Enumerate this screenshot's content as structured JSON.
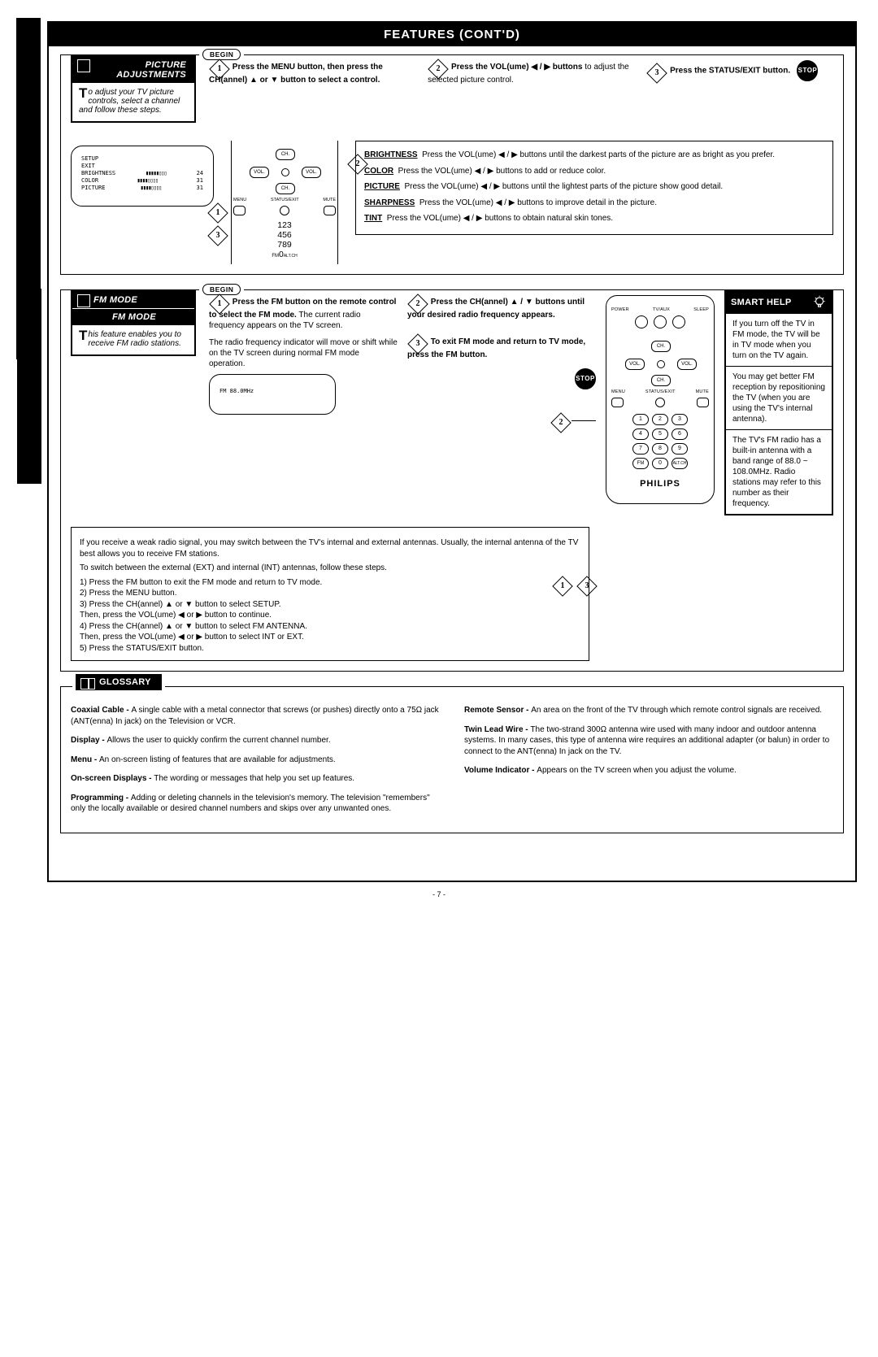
{
  "page": {
    "title_a": "F",
    "title_rest": "EATURES ",
    "title_c": "C",
    "title_d": "ONT'D",
    "number": "- 7 -"
  },
  "picture": {
    "tab_title": "PICTURE ADJUSTMENTS",
    "intro_dropcap": "T",
    "intro_text": "o adjust your TV picture controls, select a channel and follow these steps.",
    "begin": "BEGIN",
    "step1": "Press the MENU button, then press the CH(annel) ▲ or ▼ button to select a control.",
    "step2": "Press the VOL(ume) ◀ / ▶ buttons to adjust the selected picture control.",
    "step3": "Press the STATUS/EXIT button.",
    "stop": "STOP",
    "tv_menu": {
      "rows": [
        {
          "label": "SETUP",
          "bar": "",
          "val": ""
        },
        {
          "label": "EXIT",
          "bar": "",
          "val": ""
        },
        {
          "label": "BRIGHTNESS",
          "bar": "▮▮▮▮▮▯▯▯",
          "val": "24"
        },
        {
          "label": "COLOR",
          "bar": "▮▮▮▮▯▯▯▯",
          "val": "31"
        },
        {
          "label": "PICTURE",
          "bar": "▮▮▮▮▯▯▯▯",
          "val": "31"
        }
      ]
    },
    "info": {
      "brightness_t": "BRIGHTNESS",
      "brightness": "Press the VOL(ume) ◀ / ▶ buttons until the darkest parts of the picture are as bright as you prefer.",
      "color_t": "COLOR",
      "color": "Press the VOL(ume) ◀ / ▶ buttons to add or reduce color.",
      "picture_t": "PICTURE",
      "picture": "Press the VOL(ume) ◀ / ▶ buttons until the lightest parts of the picture show good detail.",
      "sharpness_t": "SHARPNESS",
      "sharpness": "Press the VOL(ume) ◀ / ▶ buttons to improve detail in the picture.",
      "tint_t": "TINT",
      "tint": "Press the VOL(ume) ◀ / ▶ buttons to obtain natural skin tones."
    }
  },
  "fm": {
    "tab_title": "FM MODE",
    "tab_sub": "FM MODE",
    "intro_dropcap": "T",
    "intro_text": "his feature enables you to receive FM radio stations.",
    "begin": "BEGIN",
    "step1a": "Press the FM button on the remote control to select the FM mode.",
    "step1b": "The current radio frequency appears on the TV screen.",
    "step1c": "The radio frequency indicator will move or shift while on the TV screen during normal FM mode operation.",
    "tv_text": "FM  88.0MHz",
    "step2": "Press the CH(annel) ▲ / ▼ buttons until your desired radio frequency appears.",
    "step3": "To exit FM mode and return to TV mode, press the FM button.",
    "stop": "STOP",
    "antenna_intro": "If you receive a weak radio signal, you may switch between the TV's internal and external antennas. Usually, the internal antenna of the TV best allows you to receive FM stations.",
    "antenna_steps_intro": "To switch between the external (EXT) and internal (INT) antennas, follow these steps.",
    "antenna_steps": [
      "1) Press the FM button to exit the FM mode and return to TV mode.",
      "2) Press the MENU button.",
      "3) Press the CH(annel) ▲ or ▼ button to select SETUP.\n    Then, press the VOL(ume) ◀ or ▶ button to continue.",
      "4) Press the CH(annel) ▲ or ▼ button to select FM ANTENNA.\n    Then, press the VOL(ume) ◀ or ▶ button to select INT or EXT.",
      "5) Press the STATUS/EXIT button."
    ],
    "smart": {
      "title": "SMART HELP",
      "p1": "If you turn off the TV in FM mode, the TV will be in TV mode when you turn on the TV again.",
      "p2": "You may get better FM reception by repositioning the TV (when you are using the TV's internal antenna).",
      "p3": "The TV's FM radio has a built-in antenna with a band range of 88.0 ~ 108.0MHz. Radio stations may refer to this number as their frequency."
    },
    "remote": {
      "top_labels": [
        "POWER",
        "TV/AUX",
        "SLEEP"
      ],
      "ch": "CH.",
      "vol": "VOL.",
      "menu": "MENU",
      "status": "STATUS/EXIT",
      "mute": "MUTE",
      "digits": [
        "1",
        "2",
        "3",
        "4",
        "5",
        "6",
        "7",
        "8",
        "9",
        "0"
      ],
      "fm": "FM",
      "alt": "ALT.CH",
      "brand": "PHILIPS"
    }
  },
  "glossary": {
    "title": "GLOSSARY",
    "left": [
      {
        "t": "Coaxial Cable - ",
        "d": "A single cable with a metal connector that screws (or pushes) directly onto a 75Ω jack (ANT(enna) In jack) on the Television or VCR."
      },
      {
        "t": "Display - ",
        "d": "Allows the user to quickly confirm the current channel number."
      },
      {
        "t": "Menu - ",
        "d": "An on-screen listing of features that are available for adjustments."
      },
      {
        "t": "On-screen Displays - ",
        "d": "The wording or messages that help you set up features."
      },
      {
        "t": "Programming - ",
        "d": "Adding or deleting channels in the television's memory. The television \"remembers\" only the locally available or desired channel numbers and skips over any unwanted ones."
      }
    ],
    "right": [
      {
        "t": "Remote Sensor - ",
        "d": "An area on the front of the TV through which remote control signals are received."
      },
      {
        "t": "Twin Lead Wire - ",
        "d": "The two-strand 300Ω antenna wire used with many indoor and outdoor antenna systems. In many cases, this type of antenna wire requires an additional adapter (or balun) in order to connect to the ANT(enna) In jack on the TV."
      },
      {
        "t": "Volume Indicator - ",
        "d": "Appears on the TV screen when you adjust the volume."
      }
    ]
  }
}
